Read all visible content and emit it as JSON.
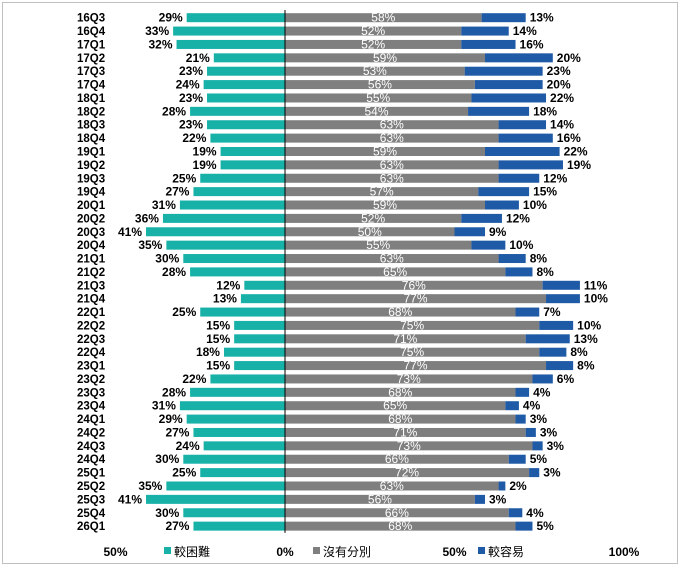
{
  "chart_data": {
    "type": "bar",
    "orientation": "horizontal",
    "stacked": "diverging",
    "categories": [
      "16Q3",
      "16Q4",
      "17Q1",
      "17Q2",
      "17Q3",
      "17Q4",
      "18Q1",
      "18Q2",
      "18Q3",
      "18Q4",
      "19Q1",
      "19Q2",
      "19Q3",
      "19Q4",
      "20Q1",
      "20Q2",
      "20Q3",
      "20Q4",
      "21Q1",
      "21Q2",
      "21Q3",
      "21Q4",
      "22Q1",
      "22Q2",
      "22Q3",
      "22Q4",
      "23Q1",
      "23Q2",
      "23Q3",
      "23Q4",
      "24Q1",
      "24Q2",
      "24Q3",
      "24Q4",
      "25Q1",
      "25Q2",
      "25Q3",
      "25Q4",
      "26Q1"
    ],
    "series": [
      {
        "name": "較困難",
        "color": "#17b1a8",
        "values": [
          29,
          33,
          32,
          21,
          23,
          24,
          23,
          28,
          23,
          22,
          19,
          19,
          25,
          27,
          31,
          36,
          41,
          35,
          30,
          28,
          12,
          13,
          25,
          15,
          15,
          18,
          15,
          22,
          28,
          31,
          29,
          27,
          24,
          30,
          25,
          35,
          41,
          30,
          27
        ]
      },
      {
        "name": "沒有分別",
        "color": "#7f7f7f",
        "values": [
          58,
          52,
          52,
          59,
          53,
          56,
          55,
          54,
          63,
          63,
          59,
          63,
          63,
          57,
          59,
          52,
          50,
          55,
          63,
          65,
          76,
          77,
          68,
          75,
          71,
          75,
          77,
          73,
          68,
          65,
          68,
          71,
          73,
          66,
          72,
          63,
          56,
          66,
          68
        ]
      },
      {
        "name": "較容易",
        "color": "#1f5aa6",
        "values": [
          13,
          14,
          16,
          20,
          23,
          20,
          22,
          18,
          14,
          16,
          22,
          19,
          12,
          15,
          10,
          12,
          9,
          10,
          8,
          8,
          11,
          10,
          7,
          10,
          13,
          8,
          8,
          6,
          4,
          4,
          3,
          3,
          3,
          5,
          3,
          2,
          3,
          4,
          5
        ]
      }
    ],
    "x_ticks": [
      "50%",
      "0%",
      "50%",
      "100%"
    ],
    "xlim": [
      -50,
      100
    ],
    "legend_position": "bottom",
    "grid": false
  }
}
